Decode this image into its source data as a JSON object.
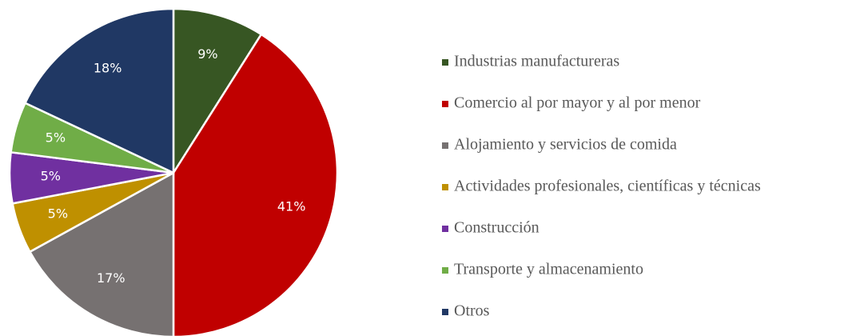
{
  "chart_data": {
    "type": "pie",
    "categories": [
      "Industrias manufactureras",
      "Comercio al por mayor y al por menor",
      "Alojamiento y servicios de comida",
      "Actividades profesionales, científicas y técnicas",
      "Construcción",
      "Transporte y almacenamiento",
      "Otros"
    ],
    "values": [
      9,
      41,
      17,
      5,
      5,
      5,
      18
    ],
    "value_labels": [
      "9%",
      "41%",
      "17%",
      "5%",
      "5%",
      "5%",
      "18%"
    ],
    "colors": [
      "#375623",
      "#c00000",
      "#767171",
      "#bf9000",
      "#7030a0",
      "#70ad47",
      "#203864"
    ],
    "legend": "right"
  }
}
